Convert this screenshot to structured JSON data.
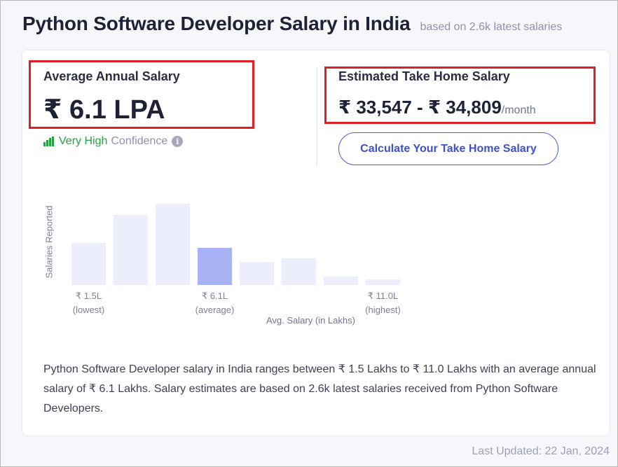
{
  "header": {
    "title": "Python Software Developer Salary in India",
    "subtitle": "based on 2.6k latest salaries"
  },
  "average": {
    "label": "Average Annual Salary",
    "value": "₹ 6.1 LPA",
    "confidence_level": "Very High",
    "confidence_word": "Confidence",
    "info_icon": "i"
  },
  "take_home": {
    "label": "Estimated Take Home Salary",
    "value": "₹ 33,547 - ₹ 34,809",
    "unit": "/month",
    "button_label": "Calculate Your Take Home Salary"
  },
  "chart_data": {
    "type": "bar",
    "ylabel": "Salaries Reported",
    "xlabel": "Avg. Salary (in Lakhs)",
    "values": [
      60,
      100,
      116,
      53,
      33,
      38,
      12,
      8
    ],
    "highlight_index": 3,
    "ticks": [
      {
        "index": 0,
        "value": "₹ 1.5L",
        "sub": "(lowest)"
      },
      {
        "index": 3,
        "value": "₹ 6.1L",
        "sub": "(average)"
      },
      {
        "index": 7,
        "value": "₹ 11.0L",
        "sub": "(highest)"
      }
    ],
    "colors": {
      "bar": "#eceefb",
      "highlight": "#a9b1f5"
    }
  },
  "description": "Python Software Developer salary in India ranges between ₹ 1.5 Lakhs to ₹ 11.0 Lakhs with an average annual salary of ₹ 6.1 Lakhs. Salary estimates are based on 2.6k latest salaries received from Python Software Developers.",
  "footer": {
    "last_updated": "Last Updated: 22 Jan, 2024"
  }
}
